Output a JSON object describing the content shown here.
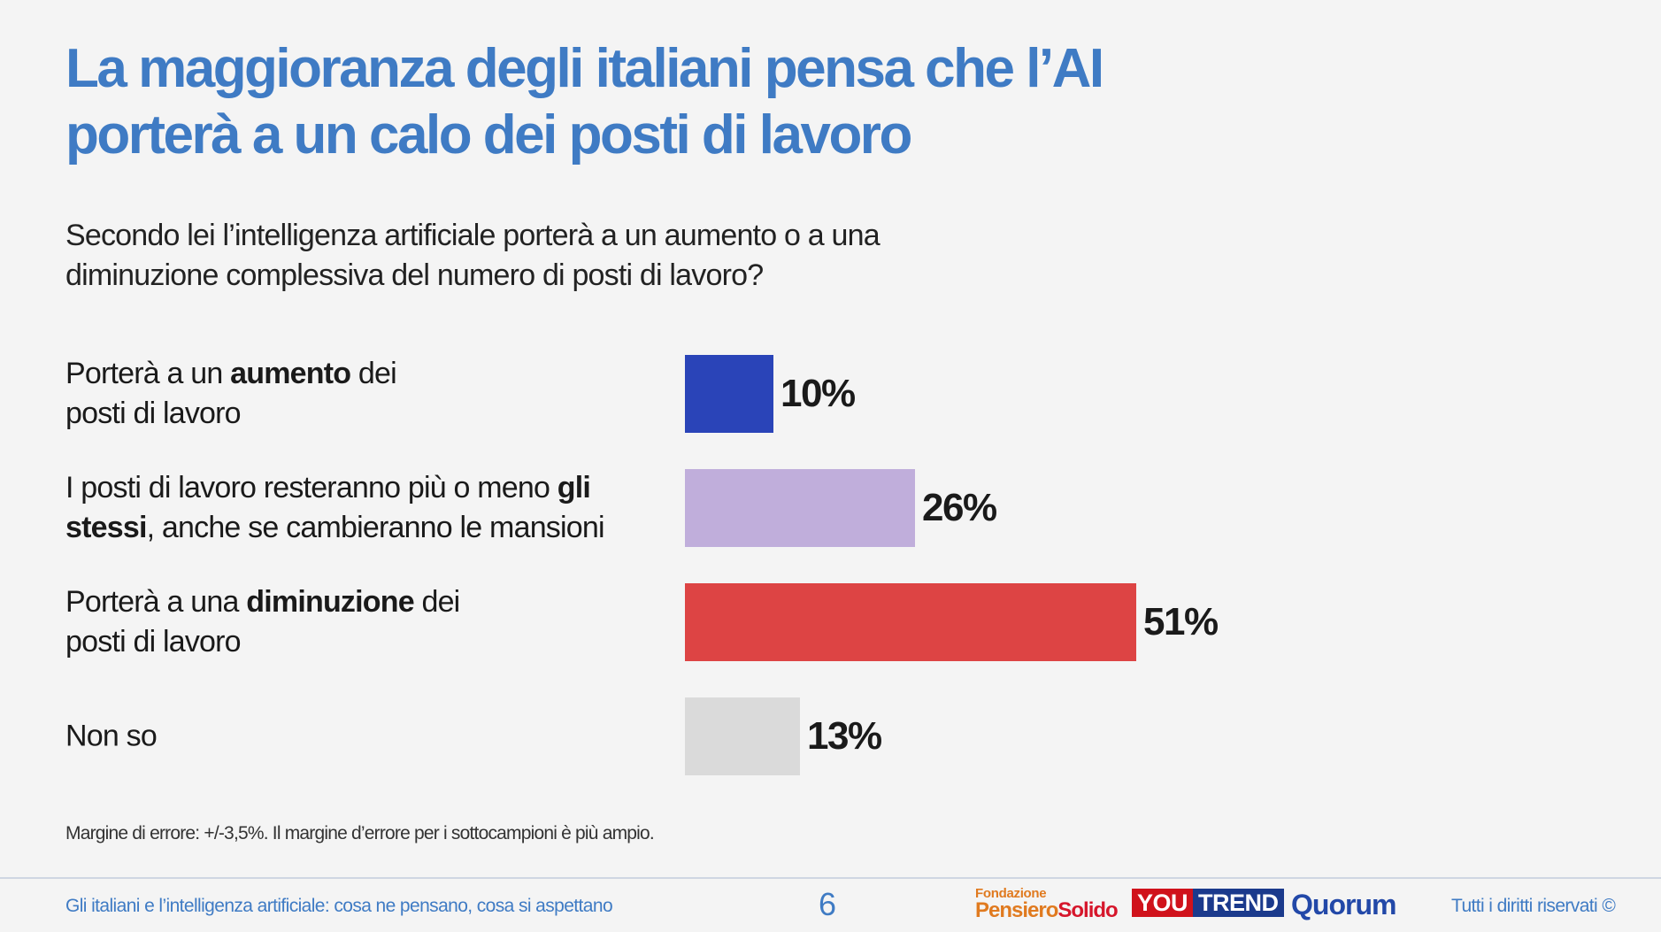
{
  "title": {
    "line1": "La maggioranza degli italiani pensa che l’AI",
    "line2": "porterà a un calo dei posti di lavoro"
  },
  "question": {
    "line1": "Secondo lei l’intelligenza artificiale porterà a un aumento o a una",
    "line2": "diminuzione complessiva del numero di posti di lavoro?"
  },
  "chart_data": {
    "type": "bar",
    "orientation": "horizontal",
    "categories": [
      "Porterà a un aumento dei posti di lavoro",
      "I posti di lavoro resteranno più o meno gli stessi, anche se cambieranno le mansioni",
      "Porterà a una diminuzione dei posti di lavoro",
      "Non so"
    ],
    "values": [
      10,
      26,
      51,
      13
    ],
    "value_labels": [
      "10%",
      "26%",
      "51%",
      "13%"
    ],
    "colors": [
      "#2a44b8",
      "#c0aedb",
      "#dd4444",
      "#dadada"
    ],
    "xlim": [
      0,
      100
    ],
    "label_rows": [
      {
        "line1_pre": "Porterà a un ",
        "line1_bold": "aumento",
        "line1_post": " dei",
        "line2_bold": "",
        "line2_post": "posti di lavoro"
      },
      {
        "line1_pre": "I posti di lavoro resteranno più o meno ",
        "line1_bold": "gli",
        "line1_post": "",
        "line2_bold": "stessi",
        "line2_post": ", anche se cambieranno le mansioni"
      },
      {
        "line1_pre": "Porterà  a una ",
        "line1_bold": "diminuzione",
        "line1_post": " dei",
        "line2_bold": "",
        "line2_post": "posti di lavoro"
      },
      {
        "line1_pre": "Non so",
        "line1_bold": "",
        "line1_post": "",
        "line2_bold": "",
        "line2_post": ""
      }
    ]
  },
  "note": "Margine di errore: +/-3,5%. Il margine d’errore per i sottocampioni è più ampio.",
  "footer": {
    "survey_title": "Gli italiani e l’intelligenza artificiale: cosa ne pensano, cosa si aspettano",
    "page_number": "6",
    "rights": "Tutti i diritti riservati ©",
    "logos": {
      "fondazione": "Fondazione",
      "pensiero": "Pensiero",
      "solido": "Solido",
      "you": "YOU",
      "trend": "TREND",
      "quorum": "Quorum"
    }
  }
}
